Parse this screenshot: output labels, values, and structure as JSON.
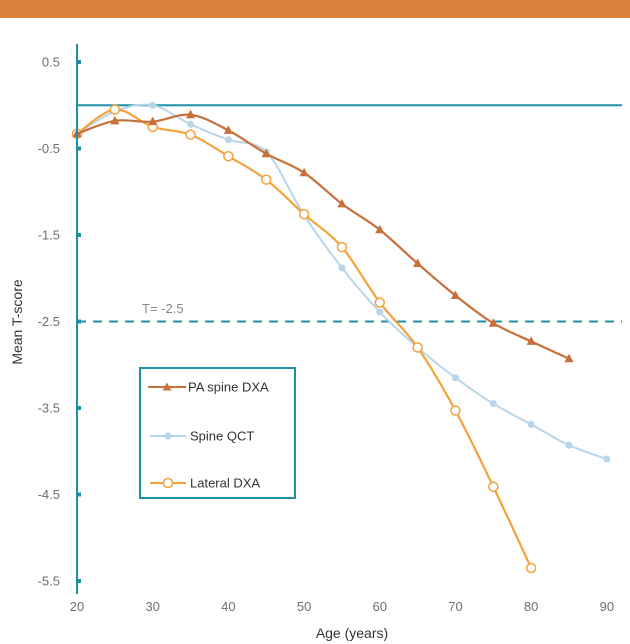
{
  "header": {
    "bar_color": "#d9803a"
  },
  "colors": {
    "axis": "#1f8fa6",
    "reference_line": "#1f8fa6",
    "threshold_line": "#1f8fa6",
    "pa_spine": "#c8703a",
    "spine_qct": "#b9d5ea",
    "lateral": "#f4a23c"
  },
  "chart_data": {
    "type": "line",
    "title": "",
    "xlabel": "Age (years)",
    "ylabel": "Mean T-score",
    "xlim": [
      20,
      92
    ],
    "ylim": [
      -5.7,
      0.8
    ],
    "x_ticks": [
      20,
      30,
      40,
      50,
      60,
      70,
      80,
      90
    ],
    "y_ticks": [
      0.5,
      -0.5,
      -1.5,
      -2.5,
      -3.5,
      -4.5,
      -5.5
    ],
    "x_tick_labels": [
      "20",
      "30",
      "40",
      "50",
      "60",
      "70",
      "80",
      "90"
    ],
    "y_tick_labels": [
      "0.5",
      "-0.5",
      "-1.5",
      "-2.5",
      "-3.5",
      "-4.5",
      "-5.5"
    ],
    "reference_line": {
      "y": 0
    },
    "threshold": {
      "y": -2.5,
      "label": "T= -2.5"
    },
    "legend_position": "lower-left",
    "series": [
      {
        "name": "PA spine DXA",
        "marker": "triangle",
        "x": [
          20,
          25,
          30,
          35,
          40,
          45,
          50,
          55,
          60,
          65,
          70,
          75,
          80,
          85
        ],
        "y": [
          -0.33,
          -0.18,
          -0.19,
          -0.11,
          -0.29,
          -0.56,
          -0.78,
          -1.14,
          -1.44,
          -1.83,
          -2.2,
          -2.52,
          -2.73,
          -2.93
        ]
      },
      {
        "name": "Spine QCT",
        "marker": "dot",
        "x": [
          20,
          25,
          30,
          35,
          40,
          45,
          50,
          55,
          60,
          65,
          70,
          75,
          80,
          85,
          90
        ],
        "y": [
          -0.33,
          -0.07,
          0.0,
          -0.22,
          -0.4,
          -0.54,
          -1.27,
          -1.88,
          -2.39,
          -2.8,
          -3.15,
          -3.45,
          -3.69,
          -3.93,
          -4.09
        ]
      },
      {
        "name": "Lateral DXA",
        "marker": "circle",
        "x": [
          20,
          25,
          30,
          35,
          40,
          45,
          50,
          55,
          60,
          65,
          70,
          75,
          80
        ],
        "y": [
          -0.33,
          -0.05,
          -0.25,
          -0.34,
          -0.59,
          -0.86,
          -1.26,
          -1.64,
          -2.28,
          -2.8,
          -3.53,
          -4.41,
          -5.35
        ]
      }
    ]
  }
}
